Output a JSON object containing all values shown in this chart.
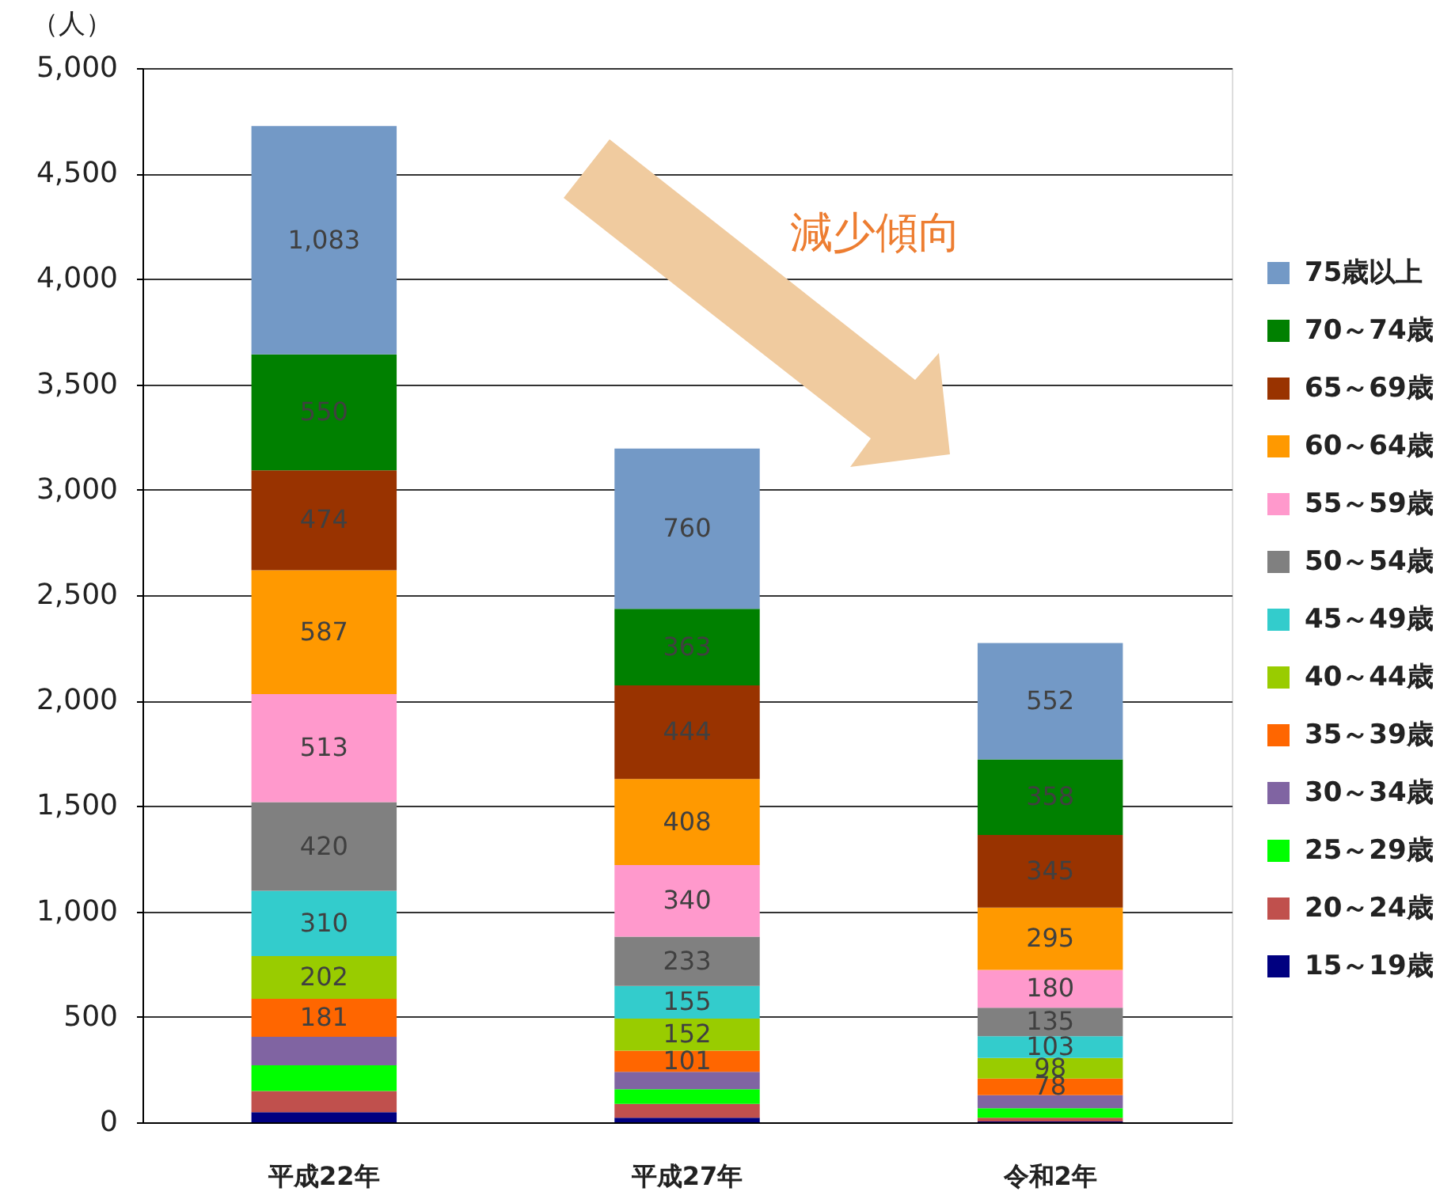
{
  "chart_data": {
    "type": "bar",
    "stacked": true,
    "ylabel": "（人）",
    "categories": [
      "平成22年",
      "平成27年",
      "令和2年"
    ],
    "series": [
      {
        "name": "15～19歳",
        "color": "#000080",
        "values": [
          48,
          22,
          4
        ],
        "value_labels": [
          null,
          null,
          null
        ]
      },
      {
        "name": "20～24歳",
        "color": "#c0504d",
        "values": [
          100,
          65,
          18
        ],
        "value_labels": [
          null,
          null,
          null
        ]
      },
      {
        "name": "25～29歳",
        "color": "#00ff00",
        "values": [
          122,
          70,
          45
        ],
        "value_labels": [
          null,
          null,
          null
        ]
      },
      {
        "name": "30～34歳",
        "color": "#8064a2",
        "values": [
          135,
          82,
          62
        ],
        "value_labels": [
          null,
          null,
          null
        ]
      },
      {
        "name": "35～39歳",
        "color": "#ff6600",
        "values": [
          181,
          101,
          78
        ],
        "value_labels": [
          "181",
          "101",
          "78"
        ]
      },
      {
        "name": "40～44歳",
        "color": "#99cc00",
        "values": [
          202,
          152,
          98
        ],
        "value_labels": [
          "202",
          "152",
          "98"
        ]
      },
      {
        "name": "45～49歳",
        "color": "#33cccc",
        "values": [
          310,
          155,
          103
        ],
        "value_labels": [
          "310",
          "155",
          "103"
        ]
      },
      {
        "name": "50～54歳",
        "color": "#808080",
        "values": [
          420,
          233,
          135
        ],
        "value_labels": [
          "420",
          "233",
          "135"
        ]
      },
      {
        "name": "55～59歳",
        "color": "#ff99cc",
        "values": [
          513,
          340,
          180
        ],
        "value_labels": [
          "513",
          "340",
          "180"
        ]
      },
      {
        "name": "60～64歳",
        "color": "#ff9900",
        "values": [
          587,
          408,
          295
        ],
        "value_labels": [
          "587",
          "408",
          "295"
        ]
      },
      {
        "name": "65～69歳",
        "color": "#993300",
        "values": [
          474,
          444,
          345
        ],
        "value_labels": [
          "474",
          "444",
          "345"
        ]
      },
      {
        "name": "70～74歳",
        "color": "#008000",
        "values": [
          550,
          363,
          358
        ],
        "value_labels": [
          "550",
          "363",
          "358"
        ]
      },
      {
        "name": "75歳以上",
        "color": "#7399c6",
        "values": [
          1083,
          760,
          552
        ],
        "value_labels": [
          "1,083",
          "760",
          "552"
        ]
      }
    ],
    "ylim": [
      0,
      5000
    ],
    "yticks": [
      0,
      500,
      {
        "value": 1000,
        "label": "1,000"
      },
      {
        "value": 1500,
        "label": "1,500"
      },
      {
        "value": 2000,
        "label": "2,000"
      },
      {
        "value": 2500,
        "label": "2,500"
      },
      {
        "value": 3000,
        "label": "3,000"
      },
      {
        "value": 3500,
        "label": "3,500"
      },
      {
        "value": 4000,
        "label": "4,000"
      },
      {
        "value": 4500,
        "label": "4,500"
      },
      {
        "value": 5000,
        "label": "5,000"
      }
    ],
    "grid": "y",
    "legend": "right",
    "annotations": [
      "減少傾向"
    ]
  }
}
